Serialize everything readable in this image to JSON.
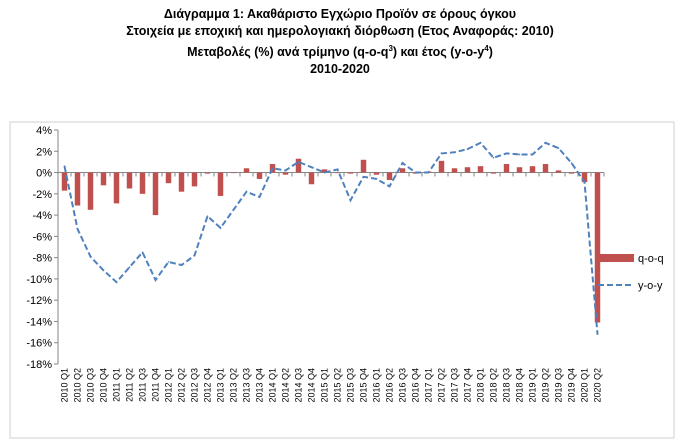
{
  "title_lines": [
    "Διάγραμμα 1: Ακαθάριστο Εγχώριο Προϊόν σε όρους όγκου",
    "Στοιχεία με εποχική και ημερολογιακή διόρθωση (Ετος Αναφοράς: 2010)",
    "Μεταβολές (%) ανά τρίμηνο (q-o-q",
    "3",
    ") και έτος (y-o-y",
    "4",
    ")",
    "2010-2020"
  ],
  "colors": {
    "bar": "#c0504d",
    "line": "#4f81bd",
    "axis": "#868686",
    "grid": "#d9d9d9"
  },
  "chart_data": {
    "type": "bar+line",
    "categories": [
      "2010 Q1",
      "2010 Q2",
      "2010 Q3",
      "2010 Q4",
      "2011 Q1",
      "2011 Q2",
      "2011 Q3",
      "2011 Q4",
      "2012 Q1",
      "2012 Q2",
      "2012 Q3",
      "2012 Q4",
      "2013 Q1",
      "2013 Q2",
      "2013 Q3",
      "2013 Q4",
      "2014 Q1",
      "2014 Q2",
      "2014 Q3",
      "2014 Q4",
      "2015 Q1",
      "2015 Q2",
      "2015 Q3",
      "2015 Q4",
      "2016 Q1",
      "2016 Q2",
      "2016 Q3",
      "2016 Q4",
      "2017 Q1",
      "2017 Q2",
      "2017 Q3",
      "2017 Q4",
      "2018 Q1",
      "2018 Q2",
      "2018 Q3",
      "2018 Q4",
      "2019 Q1",
      "2019 Q2",
      "2019 Q3",
      "2019 Q4",
      "2020 Q1",
      "2020 Q2"
    ],
    "series": [
      {
        "name": "q-o-q",
        "type": "bar",
        "values": [
          -1.7,
          -3.1,
          -3.5,
          -1.2,
          -2.9,
          -1.5,
          -2.0,
          -4.0,
          -1.0,
          -1.8,
          -1.3,
          -0.1,
          -2.2,
          0.0,
          0.4,
          -0.6,
          0.8,
          -0.2,
          1.3,
          -1.1,
          0.3,
          0.0,
          -0.1,
          1.2,
          -0.2,
          -0.7,
          0.4,
          -0.1,
          0.1,
          1.1,
          0.4,
          0.5,
          0.6,
          -0.1,
          0.8,
          0.5,
          0.6,
          0.8,
          0.2,
          -0.1,
          -0.9,
          -14.1
        ]
      },
      {
        "name": "y-o-y",
        "type": "line",
        "values": [
          0.6,
          -5.3,
          -7.9,
          -9.2,
          -10.3,
          -8.9,
          -7.5,
          -10.1,
          -8.4,
          -8.7,
          -7.8,
          -4.1,
          -5.2,
          -3.5,
          -1.8,
          -2.3,
          0.4,
          0.2,
          1.0,
          0.5,
          0.0,
          0.3,
          -2.6,
          -0.4,
          -0.6,
          -1.3,
          0.9,
          0.0,
          0.0,
          1.8,
          1.9,
          2.2,
          2.8,
          1.4,
          1.8,
          1.7,
          1.7,
          2.8,
          2.3,
          0.9,
          -0.9,
          -15.2
        ]
      }
    ],
    "ylim": [
      -18,
      4
    ],
    "yticks": [
      4,
      2,
      0,
      -2,
      -4,
      -6,
      -8,
      -10,
      -12,
      -14,
      -16,
      -18
    ],
    "ytick_labels": [
      "4%",
      "2%",
      "0%",
      "-2%",
      "-4%",
      "-6%",
      "-8%",
      "-10%",
      "-12%",
      "-14%",
      "-16%",
      "-18%"
    ],
    "grid": false,
    "legend_placement": "right"
  }
}
